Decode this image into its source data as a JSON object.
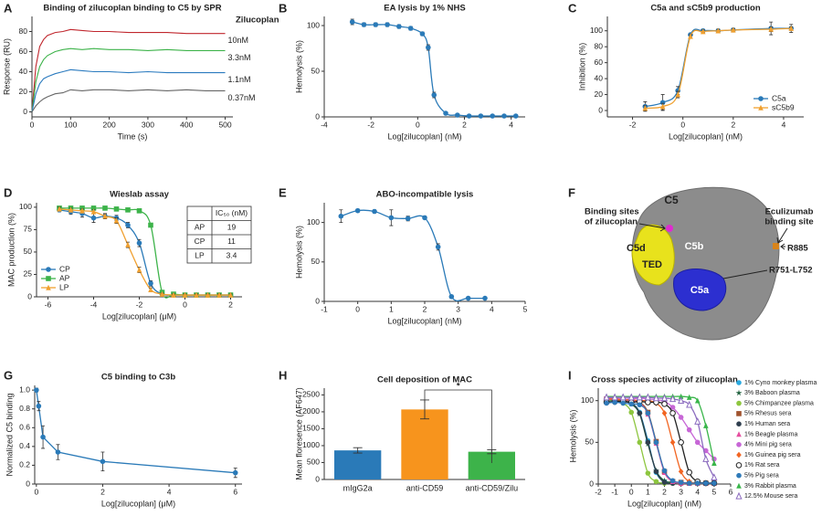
{
  "chart_data": [
    {
      "type": "line",
      "label": "A",
      "title": "Binding of zilucoplan binding to C5 by SPR",
      "xlabel": "Time (s)",
      "ylabel": "Response (RU)",
      "legend_title": "Zilucoplan",
      "xlim": [
        0,
        520
      ],
      "xticks": [
        0,
        100,
        200,
        300,
        400,
        500
      ],
      "ylim": [
        -5,
        95
      ],
      "yticks": [
        0,
        20,
        40,
        60,
        80
      ],
      "x": [
        0,
        10,
        20,
        30,
        40,
        60,
        80,
        100,
        130,
        160,
        200,
        250,
        300,
        350,
        400,
        450,
        500
      ],
      "series": [
        {
          "name": "10nM",
          "color": "#c0262d",
          "values": [
            0,
            45,
            65,
            72,
            76,
            79,
            80,
            82,
            81,
            80,
            80,
            79,
            79,
            79,
            78,
            78,
            78
          ]
        },
        {
          "name": "3.3nM",
          "color": "#3db34a",
          "values": [
            0,
            30,
            45,
            52,
            56,
            60,
            62,
            63,
            62,
            63,
            62,
            62,
            61,
            62,
            61,
            61,
            61
          ]
        },
        {
          "name": "1.1nM",
          "color": "#2b7bbf",
          "values": [
            0,
            18,
            28,
            33,
            35,
            38,
            40,
            42,
            41,
            40,
            40,
            39,
            40,
            39,
            39,
            39,
            39
          ]
        },
        {
          "name": "0.37nM",
          "color": "#666666",
          "values": [
            0,
            6,
            10,
            13,
            15,
            18,
            19,
            22,
            21,
            22,
            22,
            21,
            22,
            21,
            22,
            21,
            21
          ]
        }
      ]
    },
    {
      "type": "line",
      "label": "B",
      "title": "EA lysis by 1% NHS",
      "xlabel": "Log[zilucoplan] (nM)",
      "ylabel": "Hemolysis (%)",
      "xlim": [
        -4,
        4.6
      ],
      "xticks": [
        -4,
        -2,
        0,
        2,
        4
      ],
      "ylim": [
        0,
        110
      ],
      "yticks": [
        0,
        50,
        100
      ],
      "smooth": true,
      "x": [
        -2.8,
        -2.3,
        -1.8,
        -1.3,
        -0.8,
        -0.3,
        0.2,
        0.45,
        0.7,
        1.2,
        1.7,
        2.2,
        2.7,
        3.2,
        3.7,
        4.2
      ],
      "series": [
        {
          "color": "#2a7ab8",
          "marker": "circle",
          "values": [
            104,
            101,
            101,
            101,
            99,
            97,
            91,
            76,
            24,
            4,
            2,
            1,
            1,
            1,
            1,
            1
          ],
          "errors": [
            3,
            2,
            2,
            2,
            2,
            2,
            2,
            3,
            3,
            1,
            1,
            1,
            1,
            1,
            1,
            1
          ]
        }
      ]
    },
    {
      "type": "line",
      "label": "C",
      "title": "C5a and sC5b9 production",
      "xlabel": "Log[zilucoplan] (nM)",
      "ylabel": "Inhibition (%)",
      "xlim": [
        -3,
        4.8
      ],
      "xticks": [
        -2,
        0,
        2,
        4
      ],
      "ylim": [
        -8,
        118
      ],
      "yticks": [
        0,
        20,
        40,
        60,
        80,
        100
      ],
      "smooth": true,
      "legend": "lower right",
      "x": [
        -1.5,
        -0.8,
        -0.2,
        0.3,
        0.8,
        1.4,
        2,
        3.5,
        4.3
      ],
      "series": [
        {
          "name": "C5a",
          "color": "#2a7ab8",
          "marker": "circle",
          "values": [
            5,
            10,
            25,
            95,
            100,
            100,
            101,
            103,
            103
          ],
          "errors": [
            6,
            10,
            5,
            2,
            2,
            2,
            2,
            8,
            5
          ]
        },
        {
          "name": "sC5b9",
          "color": "#f0a030",
          "marker": "triangle",
          "values": [
            3,
            5,
            20,
            93,
            99,
            100,
            101,
            102,
            103
          ],
          "errors": [
            3,
            4,
            4,
            2,
            2,
            2,
            2,
            3,
            2
          ]
        }
      ]
    },
    {
      "type": "line",
      "label": "D",
      "title": "Wieslab assay",
      "xlabel": "Log[zilucoplan] (μM)",
      "ylabel": "MAC production (%)",
      "xlim": [
        -6.5,
        2.5
      ],
      "xticks": [
        -6,
        -4,
        -2,
        0,
        2
      ],
      "ylim": [
        0,
        105
      ],
      "yticks": [
        0,
        25,
        50,
        75,
        100
      ],
      "smooth": true,
      "legend": "lower left",
      "x": [
        -5.5,
        -5,
        -4.5,
        -4,
        -3.5,
        -3,
        -2.5,
        -2,
        -1.5,
        -1,
        -0.5,
        0,
        0.5,
        1,
        1.5,
        2
      ],
      "series": [
        {
          "name": "CP",
          "color": "#2a7ab8",
          "marker": "circle",
          "values": [
            97,
            95,
            93,
            88,
            90,
            88,
            80,
            60,
            15,
            3,
            2,
            2,
            2,
            2,
            2,
            2
          ],
          "errors": [
            2,
            3,
            4,
            5,
            3,
            3,
            3,
            4,
            3,
            1,
            1,
            1,
            1,
            1,
            1,
            1
          ]
        },
        {
          "name": "AP",
          "color": "#3db34a",
          "marker": "square",
          "values": [
            99,
            99,
            99,
            99,
            99,
            98,
            97,
            96,
            80,
            5,
            3,
            2,
            2,
            2,
            2,
            2
          ]
        },
        {
          "name": "LP",
          "color": "#f0a030",
          "marker": "triangle",
          "values": [
            98,
            97,
            96,
            95,
            90,
            85,
            58,
            30,
            8,
            3,
            2,
            2,
            2,
            2,
            2,
            2
          ],
          "errors": [
            2,
            2,
            2,
            2,
            2,
            3,
            3,
            3,
            2,
            1,
            1,
            1,
            1,
            1,
            1,
            1
          ]
        }
      ],
      "table": {
        "header": "IC₅₀ (nM)",
        "rows": [
          [
            "AP",
            "19"
          ],
          [
            "CP",
            "11"
          ],
          [
            "LP",
            "3.4"
          ]
        ]
      }
    },
    {
      "type": "line",
      "label": "E",
      "title": "ABO-incompatible lysis",
      "xlabel": "Log[zilucoplan] (nM)",
      "ylabel": "Hemolysis (%)",
      "xlim": [
        -1,
        5
      ],
      "xticks": [
        -1,
        0,
        1,
        2,
        3,
        4,
        5
      ],
      "ylim": [
        0,
        125
      ],
      "yticks": [
        0,
        50,
        100
      ],
      "smooth": true,
      "x": [
        -0.5,
        0,
        0.5,
        1,
        1.5,
        2,
        2.4,
        2.8,
        3.3,
        3.8
      ],
      "series": [
        {
          "color": "#2a7ab8",
          "marker": "circle",
          "values": [
            108,
            115,
            114,
            106,
            105,
            106,
            69,
            6,
            4,
            4
          ],
          "errors": [
            8,
            2,
            2,
            10,
            3,
            2,
            4,
            2,
            1,
            1
          ]
        }
      ]
    },
    {
      "type": "structure",
      "label": "F",
      "labels": {
        "c5": "C5",
        "binding": [
          "Binding sites",
          "of zilucoplan"
        ],
        "eculizumab": [
          "Eculizumab",
          "binding site"
        ],
        "c5d": "C5d",
        "c5b": "C5b",
        "ted": "TED",
        "c5a": "C5a",
        "r885": "R885",
        "r751": "R751-L752"
      }
    },
    {
      "type": "line",
      "label": "G",
      "title": "C5 binding to C3b",
      "xlabel": "Log[zilucoplan] (μM)",
      "ylabel": "Normalized C5  binding",
      "xlim": [
        -0.05,
        6.2
      ],
      "xticks": [
        0,
        2,
        4,
        6
      ],
      "ylim": [
        0,
        1.05
      ],
      "yticks": [
        0,
        0.2,
        0.4,
        0.6,
        0.8,
        {
          "value": 1,
          "label": "1.0"
        }
      ],
      "x": [
        0,
        0.07,
        0.2,
        0.65,
        2,
        6
      ],
      "series": [
        {
          "color": "#2a7ab8",
          "marker": "circle",
          "values": [
            1,
            0.83,
            0.5,
            0.34,
            0.24,
            0.12
          ],
          "errors": [
            0.02,
            0.05,
            0.12,
            0.08,
            0.1,
            0.05
          ]
        }
      ]
    },
    {
      "type": "bar",
      "label": "H",
      "title": "Cell deposition of MAC",
      "ylabel": "Mean floresence (AF647)",
      "categories": [
        "mIgG2a",
        "anti-CD59",
        "anti-CD59/Zilu"
      ],
      "values": [
        860,
        2070,
        820
      ],
      "errors": [
        80,
        280,
        60
      ],
      "colors": [
        "#2a7ab8",
        "#f7941d",
        "#3db34a"
      ],
      "ylim": [
        0,
        2700
      ],
      "yticks": [
        0,
        500,
        1000,
        1500,
        2000,
        2500
      ],
      "annotation": "*"
    },
    {
      "type": "line",
      "label": "I",
      "title": "Cross species activity of zilucoplan",
      "xlabel": "Log[zilucoplan] (nM)",
      "ylabel": "Hemolysis (%)",
      "xlim": [
        -2,
        6
      ],
      "xticks": [
        -2,
        -1,
        0,
        1,
        2,
        3,
        4,
        5,
        6
      ],
      "ylim": [
        0,
        115
      ],
      "yticks": [
        0,
        50,
        100
      ],
      "smooth": true,
      "legend": "outside right",
      "x": [
        -1.5,
        -1,
        -0.5,
        0,
        0.5,
        1,
        1.5,
        2,
        2.5,
        3,
        3.5,
        4,
        4.5,
        5
      ],
      "series": [
        {
          "name": "1% Cyno monkey plasma",
          "color": "#29a9e0",
          "marker": "circle",
          "values": [
            100,
            100,
            99,
            97,
            86,
            52,
            14,
            3,
            1,
            1,
            1,
            1,
            1,
            1
          ]
        },
        {
          "name": "3% Baboon plasma",
          "color": "#1b5e3a",
          "marker": "star",
          "values": [
            101,
            100,
            100,
            96,
            84,
            48,
            16,
            4,
            2,
            1,
            1,
            1,
            1,
            1
          ]
        },
        {
          "name": "5% Chimpanzee plasma",
          "color": "#8dc63f",
          "marker": "circle",
          "values": [
            100,
            101,
            97,
            86,
            50,
            13,
            3,
            1,
            1,
            1,
            1,
            1,
            1,
            1
          ]
        },
        {
          "name": "5% Rhesus sera",
          "color": "#a0522d",
          "marker": "square",
          "values": [
            102,
            101,
            100,
            100,
            98,
            86,
            51,
            15,
            3,
            2,
            1,
            1,
            1,
            1
          ]
        },
        {
          "name": "1% Human sera",
          "color": "#2f3e4e",
          "marker": "circle",
          "values": [
            99,
            98,
            99,
            97,
            85,
            50,
            15,
            2,
            1,
            1,
            1,
            1,
            1,
            1
          ]
        },
        {
          "name": "1% Beagle plasma",
          "color": "#e64fa0",
          "marker": "triangle",
          "values": [
            101,
            102,
            101,
            100,
            97,
            84,
            49,
            14,
            3,
            1,
            1,
            1,
            1,
            1
          ]
        },
        {
          "name": "4% Mini pig sera",
          "color": "#c766d6",
          "marker": "circle",
          "values": [
            103,
            103,
            102,
            102,
            103,
            102,
            101,
            99,
            92,
            80,
            65,
            50,
            40,
            30
          ]
        },
        {
          "name": "1% Guinea pig sera",
          "color": "#f26522",
          "marker": "diamond",
          "values": [
            102,
            102,
            101,
            101,
            100,
            100,
            97,
            85,
            50,
            15,
            3,
            1,
            1,
            1
          ]
        },
        {
          "name": "1% Rat sera",
          "color": "#222222",
          "marker": "open-circle",
          "values": [
            98,
            99,
            99,
            98,
            99,
            98,
            98,
            96,
            85,
            50,
            14,
            3,
            1,
            1
          ]
        },
        {
          "name": "5% Pig sera",
          "color": "#2f7ab9",
          "marker": "circle",
          "values": [
            97,
            98,
            97,
            96,
            95,
            85,
            50,
            16,
            4,
            2,
            1,
            1,
            1,
            1
          ]
        },
        {
          "name": "3% Rabbit plasma",
          "color": "#39b54a",
          "marker": "triangle",
          "values": [
            105,
            105,
            105,
            105,
            105,
            105,
            105,
            105,
            105,
            105,
            104,
            100,
            70,
            25
          ]
        },
        {
          "name": "12.5% Mouse sera",
          "color": "#8b6bbf",
          "marker": "open-triangle",
          "values": [
            104,
            104,
            104,
            104,
            104,
            104,
            103,
            103,
            102,
            100,
            95,
            75,
            30,
            8
          ]
        }
      ]
    }
  ]
}
